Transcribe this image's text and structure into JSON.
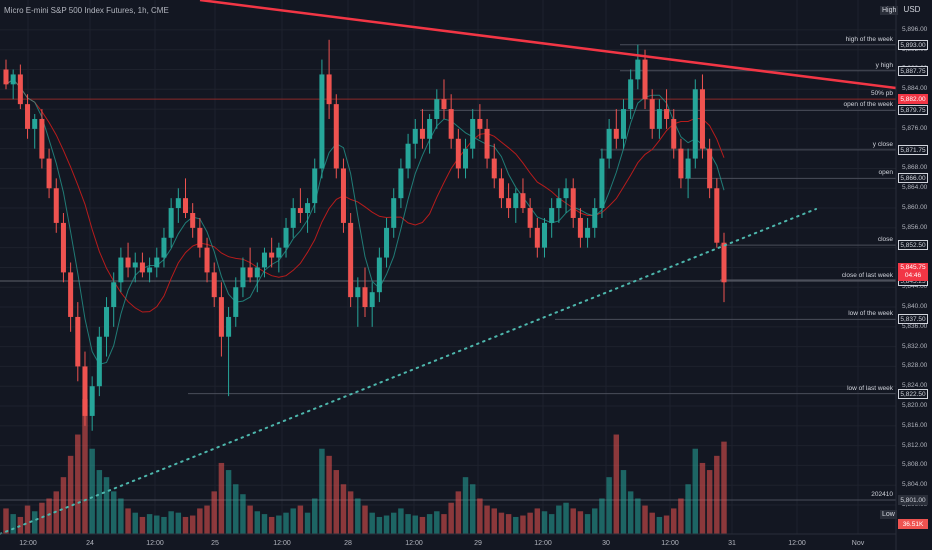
{
  "header": {
    "title": "Micro E-mini S&P 500 Index Futures, 1h, CME",
    "currency": "USD",
    "high_label": "High",
    "low_label": "Low"
  },
  "colors": {
    "background": "#131722",
    "up": "#26a69a",
    "down": "#ef5350",
    "trend_red": "#f23645",
    "trend_dotted": "#4db6ac",
    "grid": "#1e222d",
    "level_line": "#4a4e5a",
    "ma_red": "#b71c1c",
    "ma_green": "#26a69a"
  },
  "price_axis": {
    "ticks": [
      "5,896.00",
      "5,892.00",
      "5,888.00",
      "5,884.00",
      "5,880.00",
      "5,876.00",
      "5,872.00",
      "5,868.00",
      "5,864.00",
      "5,860.00",
      "5,856.00",
      "5,852.00",
      "5,848.00",
      "5,844.00",
      "5,840.00",
      "5,836.00",
      "5,832.00",
      "5,828.00",
      "5,824.00",
      "5,820.00",
      "5,816.00",
      "5,812.00",
      "5,808.00",
      "5,804.00",
      "5,800.00"
    ]
  },
  "time_axis": {
    "ticks": [
      "12:00",
      "24",
      "12:00",
      "25",
      "12:00",
      "28",
      "12:00",
      "29",
      "12:00",
      "30",
      "12:00",
      "31",
      "12:00",
      "Nov"
    ]
  },
  "levels": [
    {
      "label": "high of the week",
      "price": "5,893.00",
      "tag": "plain"
    },
    {
      "label": "y high",
      "price": "5,887.75",
      "tag": "plain"
    },
    {
      "label": "50% pb",
      "price": "5,882.00",
      "tag": "red"
    },
    {
      "label": "open of the week",
      "price": "5,879.75",
      "tag": "plain"
    },
    {
      "label": "y close",
      "price": "5,871.75",
      "tag": "plain"
    },
    {
      "label": "open",
      "price": "5,866.00",
      "tag": "plain"
    },
    {
      "label": "close",
      "price": "5,852.50",
      "tag": "plain"
    },
    {
      "label": "",
      "price": "5,845.50",
      "tag": "plain"
    },
    {
      "label": "close of last week",
      "price": "5,845.25",
      "tag": "plain"
    },
    {
      "label": "low of the week",
      "price": "5,837.50",
      "tag": "plain"
    },
    {
      "label": "low of last week",
      "price": "5,822.50",
      "tag": "plain"
    },
    {
      "label": "",
      "price": "5,801.00",
      "tag": "plain"
    },
    {
      "label": "202410",
      "price": "5,801.00",
      "tag": "dark"
    }
  ],
  "last_price": {
    "price": "5,845.75",
    "countdown": "04:46"
  },
  "volume_tag": "36.51K",
  "chart_data": {
    "type": "candlestick",
    "symbol": "Micro E-mini S&P 500 Index Futures",
    "interval": "1h",
    "exchange": "CME",
    "ylim": [
      5800,
      5898
    ],
    "candles": [
      [
        5888,
        5890,
        5884,
        5885
      ],
      [
        5885,
        5888,
        5882,
        5887
      ],
      [
        5887,
        5889,
        5880,
        5881
      ],
      [
        5881,
        5883,
        5874,
        5876
      ],
      [
        5876,
        5879,
        5872,
        5878
      ],
      [
        5878,
        5880,
        5868,
        5870
      ],
      [
        5870,
        5872,
        5862,
        5864
      ],
      [
        5864,
        5866,
        5855,
        5857
      ],
      [
        5857,
        5859,
        5845,
        5847
      ],
      [
        5847,
        5849,
        5835,
        5838
      ],
      [
        5838,
        5841,
        5825,
        5828
      ],
      [
        5828,
        5831,
        5816,
        5818
      ],
      [
        5818,
        5826,
        5815,
        5824
      ],
      [
        5824,
        5836,
        5822,
        5834
      ],
      [
        5834,
        5842,
        5830,
        5840
      ],
      [
        5840,
        5847,
        5836,
        5845
      ],
      [
        5845,
        5852,
        5843,
        5850
      ],
      [
        5850,
        5853,
        5846,
        5848
      ],
      [
        5848,
        5851,
        5845,
        5849
      ],
      [
        5849,
        5851,
        5846,
        5847
      ],
      [
        5847,
        5850,
        5845,
        5848
      ],
      [
        5848,
        5852,
        5846,
        5850
      ],
      [
        5850,
        5856,
        5848,
        5854
      ],
      [
        5854,
        5862,
        5852,
        5860
      ],
      [
        5860,
        5864,
        5857,
        5862
      ],
      [
        5862,
        5866,
        5858,
        5859
      ],
      [
        5859,
        5861,
        5854,
        5856
      ],
      [
        5856,
        5858,
        5850,
        5852
      ],
      [
        5852,
        5854,
        5845,
        5847
      ],
      [
        5847,
        5849,
        5840,
        5842
      ],
      [
        5842,
        5845,
        5830,
        5834
      ],
      [
        5834,
        5840,
        5822,
        5838
      ],
      [
        5838,
        5846,
        5836,
        5844
      ],
      [
        5844,
        5850,
        5842,
        5848
      ],
      [
        5848,
        5852,
        5845,
        5846
      ],
      [
        5846,
        5849,
        5843,
        5848
      ],
      [
        5848,
        5852,
        5846,
        5851
      ],
      [
        5851,
        5854,
        5848,
        5850
      ],
      [
        5850,
        5853,
        5847,
        5852
      ],
      [
        5852,
        5858,
        5850,
        5856
      ],
      [
        5856,
        5862,
        5854,
        5860
      ],
      [
        5860,
        5864,
        5857,
        5859
      ],
      [
        5859,
        5862,
        5855,
        5861
      ],
      [
        5861,
        5870,
        5859,
        5868
      ],
      [
        5868,
        5890,
        5866,
        5887
      ],
      [
        5887,
        5894,
        5878,
        5881
      ],
      [
        5881,
        5883,
        5866,
        5868
      ],
      [
        5868,
        5870,
        5855,
        5857
      ],
      [
        5857,
        5859,
        5840,
        5842
      ],
      [
        5842,
        5846,
        5836,
        5844
      ],
      [
        5844,
        5848,
        5838,
        5840
      ],
      [
        5840,
        5845,
        5836,
        5843
      ],
      [
        5843,
        5852,
        5841,
        5850
      ],
      [
        5850,
        5858,
        5848,
        5856
      ],
      [
        5856,
        5864,
        5854,
        5862
      ],
      [
        5862,
        5870,
        5860,
        5868
      ],
      [
        5868,
        5875,
        5866,
        5873
      ],
      [
        5873,
        5878,
        5870,
        5876
      ],
      [
        5876,
        5880,
        5872,
        5874
      ],
      [
        5874,
        5879,
        5871,
        5878
      ],
      [
        5878,
        5884,
        5876,
        5882
      ],
      [
        5882,
        5886,
        5878,
        5880
      ],
      [
        5880,
        5883,
        5872,
        5874
      ],
      [
        5874,
        5876,
        5866,
        5868
      ],
      [
        5868,
        5874,
        5866,
        5872
      ],
      [
        5872,
        5880,
        5870,
        5878
      ],
      [
        5878,
        5881,
        5874,
        5876
      ],
      [
        5876,
        5878,
        5868,
        5870
      ],
      [
        5870,
        5873,
        5864,
        5866
      ],
      [
        5866,
        5868,
        5860,
        5862
      ],
      [
        5862,
        5865,
        5858,
        5860
      ],
      [
        5860,
        5864,
        5857,
        5863
      ],
      [
        5863,
        5866,
        5859,
        5860
      ],
      [
        5860,
        5862,
        5854,
        5856
      ],
      [
        5856,
        5858,
        5850,
        5852
      ],
      [
        5852,
        5858,
        5850,
        5857
      ],
      [
        5857,
        5862,
        5854,
        5860
      ],
      [
        5860,
        5864,
        5857,
        5862
      ],
      [
        5862,
        5866,
        5859,
        5864
      ],
      [
        5864,
        5866,
        5856,
        5858
      ],
      [
        5858,
        5860,
        5852,
        5854
      ],
      [
        5854,
        5858,
        5852,
        5856
      ],
      [
        5856,
        5862,
        5854,
        5860
      ],
      [
        5860,
        5872,
        5858,
        5870
      ],
      [
        5870,
        5878,
        5868,
        5876
      ],
      [
        5876,
        5880,
        5872,
        5874
      ],
      [
        5874,
        5882,
        5872,
        5880
      ],
      [
        5880,
        5888,
        5878,
        5886
      ],
      [
        5886,
        5893,
        5884,
        5890
      ],
      [
        5890,
        5892,
        5880,
        5882
      ],
      [
        5882,
        5884,
        5874,
        5876
      ],
      [
        5876,
        5882,
        5874,
        5880
      ],
      [
        5880,
        5884,
        5876,
        5878
      ],
      [
        5878,
        5880,
        5870,
        5872
      ],
      [
        5872,
        5874,
        5864,
        5866
      ],
      [
        5866,
        5872,
        5862,
        5870
      ],
      [
        5870,
        5886,
        5868,
        5884
      ],
      [
        5884,
        5887,
        5870,
        5872
      ],
      [
        5872,
        5874,
        5862,
        5864
      ],
      [
        5864,
        5866,
        5852,
        5853
      ],
      [
        5853,
        5855,
        5841,
        5845
      ]
    ],
    "volume": [
      18,
      14,
      12,
      20,
      16,
      22,
      25,
      30,
      40,
      55,
      70,
      95,
      60,
      45,
      40,
      30,
      25,
      18,
      15,
      12,
      14,
      13,
      12,
      16,
      15,
      12,
      13,
      18,
      20,
      30,
      50,
      45,
      35,
      28,
      20,
      16,
      14,
      12,
      13,
      15,
      18,
      20,
      15,
      25,
      60,
      55,
      45,
      35,
      30,
      25,
      20,
      15,
      12,
      13,
      15,
      18,
      14,
      13,
      12,
      14,
      16,
      14,
      22,
      30,
      40,
      35,
      25,
      20,
      18,
      15,
      14,
      12,
      13,
      15,
      18,
      16,
      14,
      20,
      22,
      18,
      16,
      14,
      18,
      25,
      40,
      70,
      45,
      30,
      25,
      20,
      15,
      12,
      13,
      18,
      25,
      35,
      60,
      50,
      45,
      55,
      65
    ]
  }
}
